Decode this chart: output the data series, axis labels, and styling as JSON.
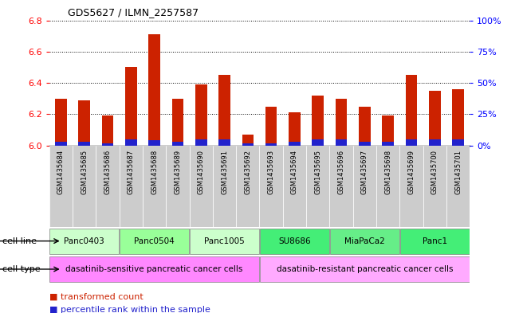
{
  "title": "GDS5627 / ILMN_2257587",
  "samples": [
    "GSM1435684",
    "GSM1435685",
    "GSM1435686",
    "GSM1435687",
    "GSM1435688",
    "GSM1435689",
    "GSM1435690",
    "GSM1435691",
    "GSM1435692",
    "GSM1435693",
    "GSM1435694",
    "GSM1435695",
    "GSM1435696",
    "GSM1435697",
    "GSM1435698",
    "GSM1435699",
    "GSM1435700",
    "GSM1435701"
  ],
  "transformed_count": [
    6.3,
    6.29,
    6.19,
    6.5,
    6.71,
    6.3,
    6.39,
    6.45,
    6.07,
    6.25,
    6.21,
    6.32,
    6.3,
    6.25,
    6.19,
    6.45,
    6.35,
    6.36
  ],
  "percentile": [
    3,
    3,
    2,
    5,
    4,
    3,
    5,
    5,
    2,
    2,
    3,
    5,
    5,
    3,
    3,
    5,
    5,
    5
  ],
  "ylim_left": [
    6.0,
    6.8
  ],
  "ylim_right": [
    0,
    100
  ],
  "yticks_left": [
    6.0,
    6.2,
    6.4,
    6.6,
    6.8
  ],
  "yticks_right": [
    0,
    25,
    50,
    75,
    100
  ],
  "ytick_labels_right": [
    "0%",
    "25%",
    "50%",
    "75%",
    "100%"
  ],
  "bar_color_red": "#cc2200",
  "bar_color_blue": "#2222cc",
  "sample_bg_color": "#cccccc",
  "cell_lines": [
    {
      "name": "Panc0403",
      "start": 0,
      "end": 3,
      "color": "#ccffcc"
    },
    {
      "name": "Panc0504",
      "start": 3,
      "end": 6,
      "color": "#99ff99"
    },
    {
      "name": "Panc1005",
      "start": 6,
      "end": 9,
      "color": "#ccffcc"
    },
    {
      "name": "SU8686",
      "start": 9,
      "end": 12,
      "color": "#44ee77"
    },
    {
      "name": "MiaPaCa2",
      "start": 12,
      "end": 15,
      "color": "#66ee88"
    },
    {
      "name": "Panc1",
      "start": 15,
      "end": 18,
      "color": "#44ee77"
    }
  ],
  "cell_types": [
    {
      "name": "dasatinib-sensitive pancreatic cancer cells",
      "start": 0,
      "end": 9,
      "color": "#ff88ff"
    },
    {
      "name": "dasatinib-resistant pancreatic cancer cells",
      "start": 9,
      "end": 18,
      "color": "#ffaaff"
    }
  ],
  "cell_line_row_label": "cell line",
  "cell_type_row_label": "cell type",
  "legend_items": [
    {
      "color": "#cc2200",
      "label": "transformed count"
    },
    {
      "color": "#2222cc",
      "label": "percentile rank within the sample"
    }
  ]
}
